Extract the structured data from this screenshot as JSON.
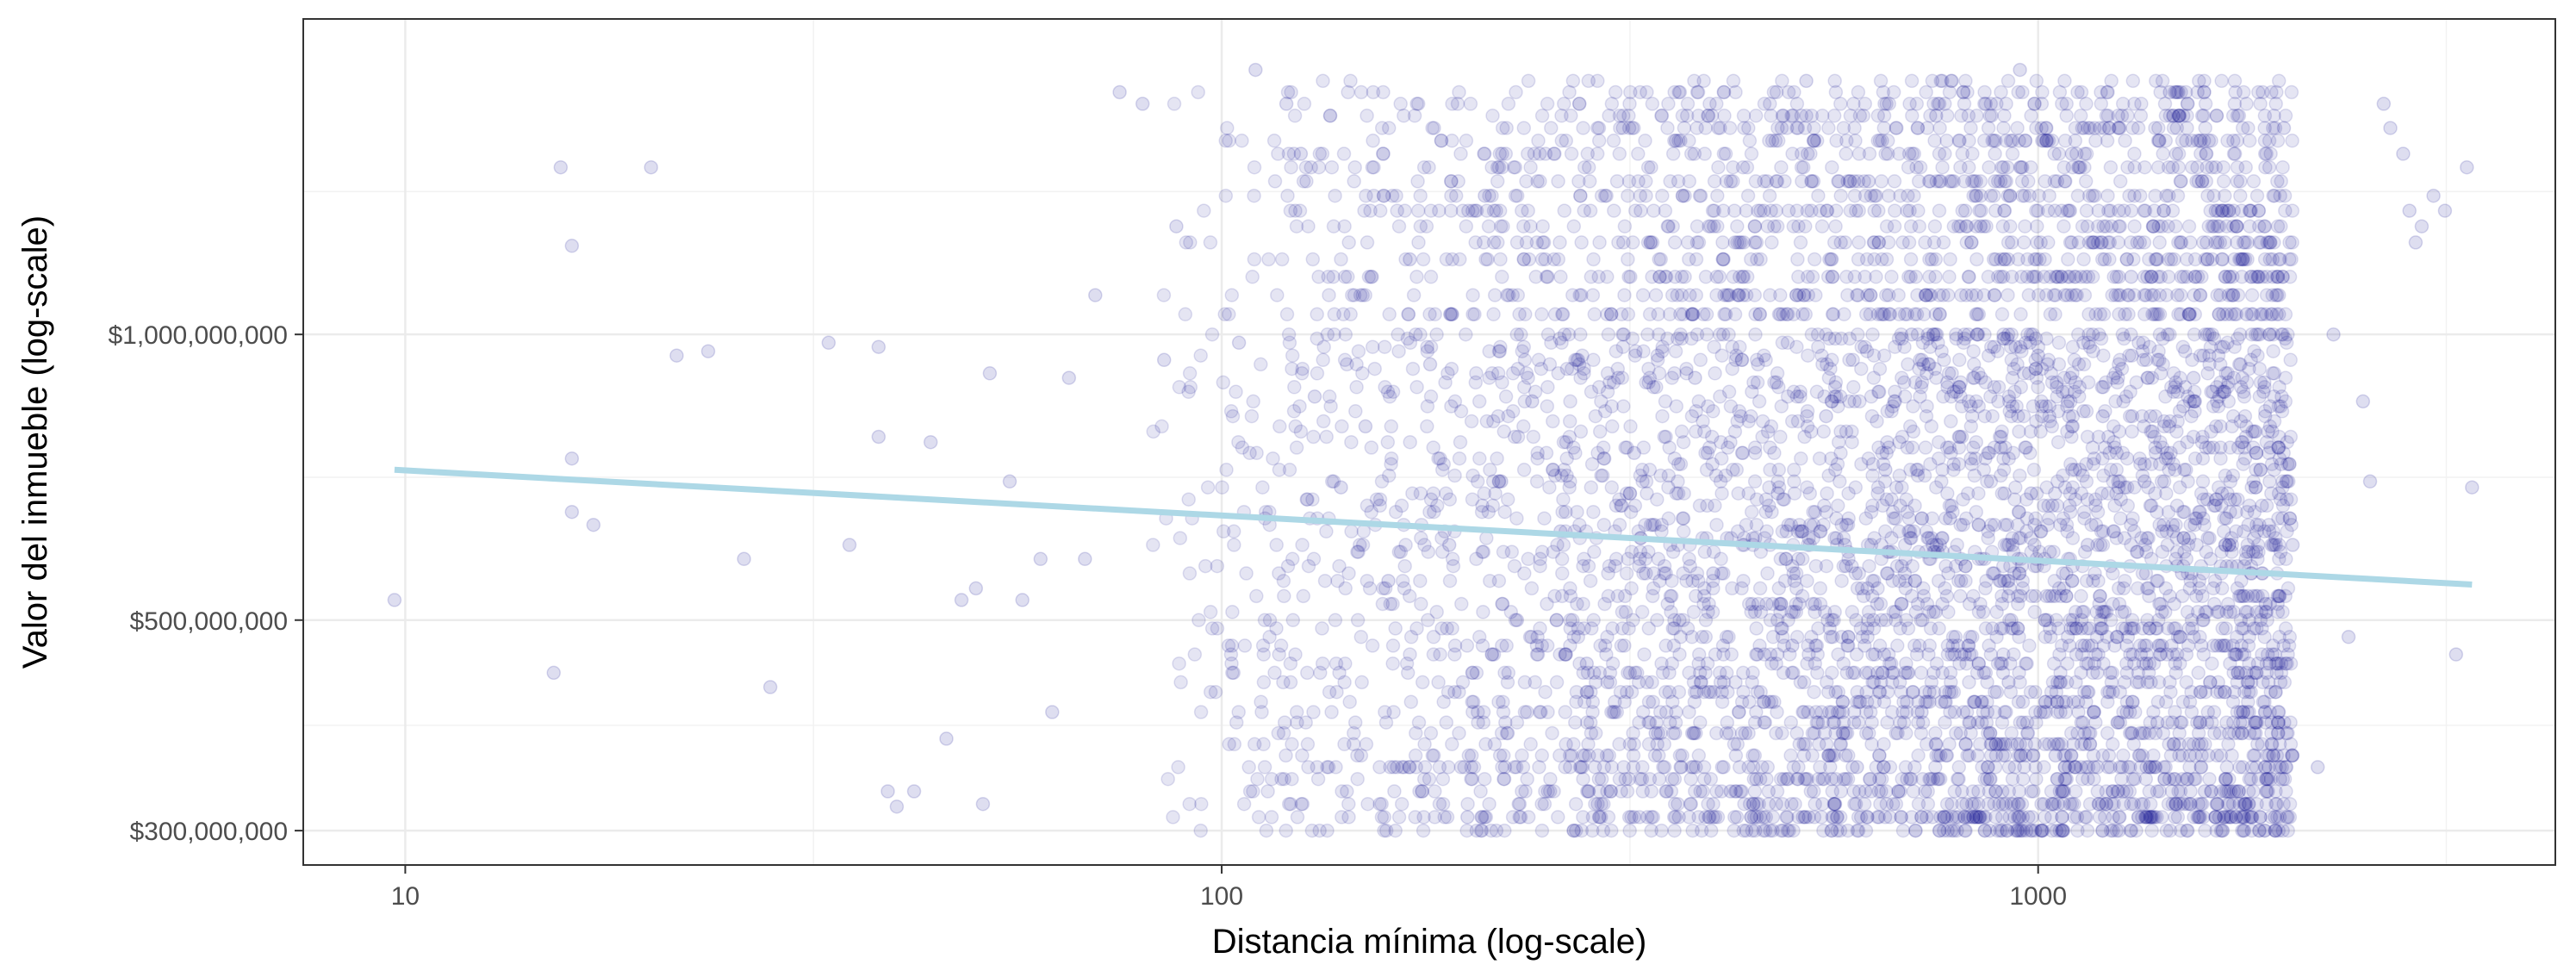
{
  "chart_data": {
    "type": "scatter",
    "title": "",
    "xlabel": "Distancia mínima (log-scale)",
    "ylabel": "Valor del inmueble (log-scale)",
    "x_scale": "log10",
    "y_scale": "log10",
    "xlim": [
      7.5,
      4300
    ],
    "ylim": [
      276000000,
      2150000000
    ],
    "x_ticks": [
      {
        "value": 10,
        "label": "10"
      },
      {
        "value": 100,
        "label": "100"
      },
      {
        "value": 1000,
        "label": "1000"
      }
    ],
    "y_ticks": [
      {
        "value": 300000000,
        "label": "$300,000,000"
      },
      {
        "value": 500000000,
        "label": "$500,000,000"
      },
      {
        "value": 1000000000,
        "label": "$1,000,000,000"
      }
    ],
    "grid": true,
    "legend": "none",
    "point_color": "#00008B",
    "point_opacity": 0.1,
    "trend_color": "#ADD8E6",
    "trend_line": {
      "x": [
        9.7,
        3400
      ],
      "y": [
        720000000,
        545000000
      ]
    },
    "points": [
      [
        9.7,
        525000000
      ],
      [
        15.5,
        1500000000
      ],
      [
        16,
        1240000000
      ],
      [
        16,
        740000000
      ],
      [
        16,
        650000000
      ],
      [
        17,
        630000000
      ],
      [
        15.2,
        440000000
      ],
      [
        20,
        1500000000
      ],
      [
        21.5,
        950000000
      ],
      [
        23.5,
        960000000
      ],
      [
        26,
        580000000
      ],
      [
        28,
        425000000
      ],
      [
        33,
        980000000
      ],
      [
        35,
        600000000
      ],
      [
        38,
        780000000
      ],
      [
        38,
        970000000
      ],
      [
        39,
        330000000
      ],
      [
        40,
        318000000
      ],
      [
        42,
        330000000
      ],
      [
        44,
        770000000
      ],
      [
        46,
        375000000
      ],
      [
        48,
        525000000
      ],
      [
        50,
        540000000
      ],
      [
        51,
        320000000
      ],
      [
        52,
        910000000
      ],
      [
        55,
        700000000
      ],
      [
        57,
        525000000
      ],
      [
        60,
        580000000
      ],
      [
        62,
        400000000
      ],
      [
        65,
        900000000
      ],
      [
        68,
        580000000
      ],
      [
        70,
        1100000000
      ],
      [
        75,
        1800000000
      ],
      [
        80,
        1750000000
      ],
      [
        85,
        940000000
      ],
      [
        88,
        1300000000
      ],
      [
        105,
        980000000
      ],
      [
        110,
        1900000000
      ],
      [
        120,
        1750000000
      ],
      [
        125,
        1550000000
      ],
      [
        130,
        860000000
      ],
      [
        140,
        690000000
      ],
      [
        150,
        800000000
      ],
      [
        160,
        550000000
      ],
      [
        170,
        1200000000
      ],
      [
        180,
        930000000
      ],
      [
        190,
        600000000
      ],
      [
        200,
        310000000
      ],
      [
        210,
        1400000000
      ],
      [
        220,
        700000000
      ],
      [
        230,
        500000000
      ],
      [
        240,
        850000000
      ],
      [
        250,
        1150000000
      ],
      [
        260,
        620000000
      ],
      [
        280,
        450000000
      ],
      [
        300,
        1050000000
      ],
      [
        320,
        750000000
      ],
      [
        340,
        380000000
      ],
      [
        360,
        1600000000
      ],
      [
        380,
        900000000
      ],
      [
        400,
        560000000
      ],
      [
        420,
        330000000
      ],
      [
        450,
        1250000000
      ],
      [
        480,
        680000000
      ],
      [
        500,
        470000000
      ],
      [
        520,
        1850000000
      ],
      [
        550,
        820000000
      ],
      [
        580,
        600000000
      ],
      [
        600,
        350000000
      ],
      [
        620,
        1450000000
      ],
      [
        650,
        720000000
      ],
      [
        680,
        520000000
      ],
      [
        700,
        1000000000
      ],
      [
        720,
        400000000
      ],
      [
        750,
        1700000000
      ],
      [
        780,
        640000000
      ],
      [
        800,
        880000000
      ],
      [
        820,
        310000000
      ],
      [
        850,
        1300000000
      ],
      [
        880,
        560000000
      ],
      [
        900,
        760000000
      ],
      [
        920,
        430000000
      ],
      [
        950,
        1900000000
      ],
      [
        980,
        680000000
      ],
      [
        1000,
        950000000
      ],
      [
        1050,
        360000000
      ],
      [
        1100,
        1550000000
      ],
      [
        1150,
        600000000
      ],
      [
        1200,
        820000000
      ],
      [
        1250,
        480000000
      ],
      [
        1300,
        1150000000
      ],
      [
        1350,
        700000000
      ],
      [
        1400,
        390000000
      ],
      [
        1450,
        1800000000
      ],
      [
        1500,
        560000000
      ],
      [
        1550,
        900000000
      ],
      [
        1600,
        330000000
      ],
      [
        1650,
        1350000000
      ],
      [
        1700,
        640000000
      ],
      [
        1750,
        460000000
      ],
      [
        1800,
        1050000000
      ],
      [
        1850,
        750000000
      ],
      [
        1900,
        520000000
      ],
      [
        1950,
        310000000
      ],
      [
        2000,
        1650000000
      ],
      [
        2050,
        600000000
      ],
      [
        2200,
        350000000
      ],
      [
        2300,
        1000000000
      ],
      [
        2400,
        480000000
      ],
      [
        2500,
        850000000
      ],
      [
        2550,
        700000000
      ],
      [
        2650,
        1750000000
      ],
      [
        2700,
        1650000000
      ],
      [
        2800,
        1550000000
      ],
      [
        2850,
        1350000000
      ],
      [
        2900,
        1250000000
      ],
      [
        2950,
        1300000000
      ],
      [
        3050,
        1400000000
      ],
      [
        3150,
        1350000000
      ],
      [
        3250,
        460000000
      ],
      [
        3350,
        1500000000
      ],
      [
        3400,
        690000000
      ]
    ],
    "dense_cluster": {
      "x_range": [
        80,
        2050
      ],
      "y_range": [
        300000000,
        1850000000
      ],
      "description": "Dense overlapping cloud of points concentrated between distance 80 and 2000, values from $300M to about $1.85B, densest between 300 and 1800"
    }
  }
}
